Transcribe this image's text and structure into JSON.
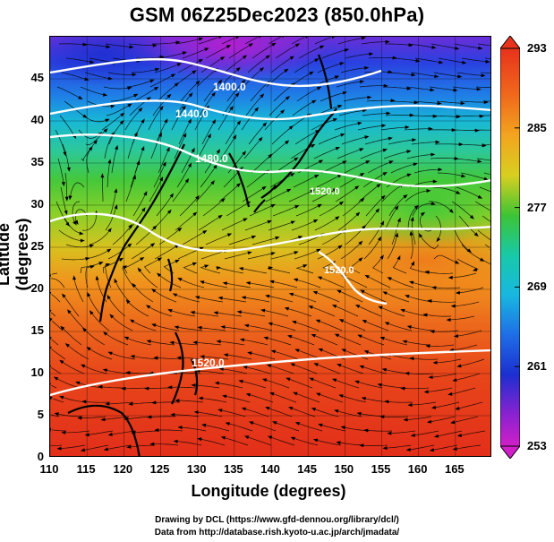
{
  "title": "GSM 06Z25Dec2023 (850.0hPa)",
  "axes": {
    "xlabel": "Longitude (degrees)",
    "ylabel": "Latitude  (degrees)",
    "xticks": [
      "110",
      "115",
      "120",
      "125",
      "130",
      "135",
      "140",
      "145",
      "150",
      "155",
      "160",
      "165"
    ],
    "yticks": [
      "0",
      "5",
      "10",
      "15",
      "20",
      "25",
      "30",
      "35",
      "40",
      "45"
    ],
    "xlim": [
      110,
      170
    ],
    "ylim": [
      0,
      50
    ]
  },
  "colorbar": {
    "labels": [
      "293",
      "285",
      "277",
      "269",
      "261",
      "253"
    ],
    "range": [
      253,
      293
    ]
  },
  "contours": {
    "labels": [
      "1400.0",
      "1440.0",
      "1480.0",
      "1520.0",
      "1520.0",
      "1520.0"
    ]
  },
  "credits": {
    "line1": "Drawing by DCL (https://www.gfd-dennou.org/library/dcl/)",
    "line2": "Data from http://database.rish.kyoto-u.ac.jp/arch/jmadata/"
  },
  "colors": {
    "cold": "#cc1fd0",
    "cool": "#1436d8",
    "mild": "#16c9b6",
    "warm_green": "#3dc435",
    "warm": "#f2a51f",
    "hot": "#e6341a"
  },
  "chart_data": {
    "type": "heatmap",
    "title": "GSM 06Z25Dec2023 (850.0hPa)",
    "xlabel": "Longitude (degrees)",
    "ylabel": "Latitude  (degrees)",
    "xlim": [
      110,
      170
    ],
    "ylim": [
      0,
      50
    ],
    "color_range": [
      253,
      293
    ],
    "contour_levels": [
      1400,
      1440,
      1480,
      1520
    ],
    "overlays": [
      "streamlines",
      "coastlines",
      "grid"
    ]
  }
}
